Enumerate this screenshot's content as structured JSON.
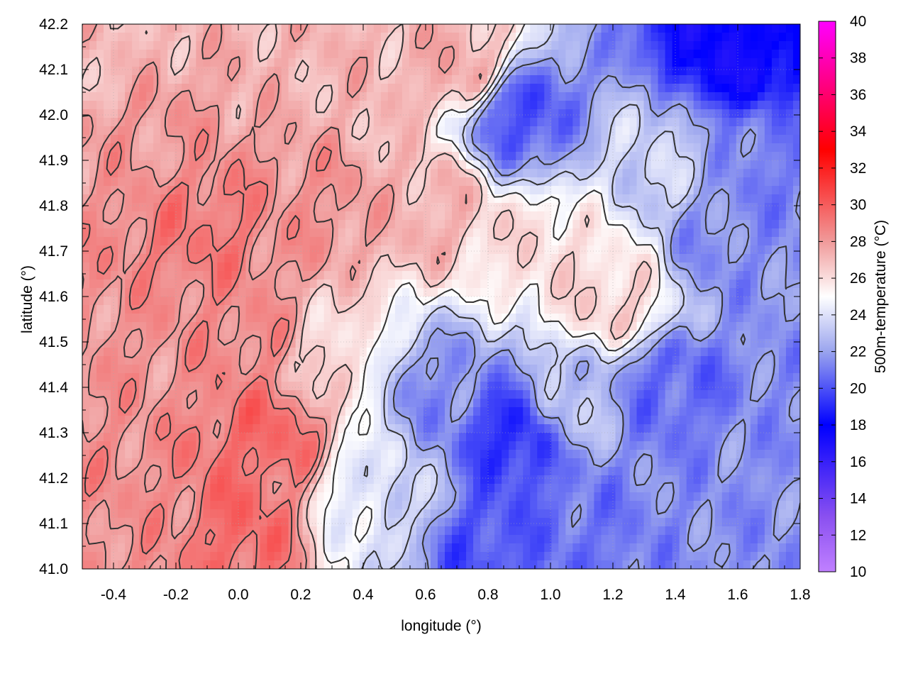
{
  "chart_data": {
    "type": "heatmap",
    "title": "",
    "xlabel": "longitude (°)",
    "ylabel": "latitude (°)",
    "colorbar_label": "500m-temperature (°C)",
    "xlim": [
      -0.5,
      1.8
    ],
    "ylim": [
      41.0,
      42.2
    ],
    "x_ticks": [
      -0.4,
      -0.2,
      0.0,
      0.2,
      0.4,
      0.6,
      0.8,
      1.0,
      1.2,
      1.4,
      1.6,
      1.8
    ],
    "x_tick_labels": [
      "-0.4",
      "-0.2",
      "0.0",
      "0.2",
      "0.4",
      "0.6",
      "0.8",
      "1.0",
      "1.2",
      "1.4",
      "1.6",
      "1.8"
    ],
    "y_ticks": [
      41.0,
      41.1,
      41.2,
      41.3,
      41.4,
      41.5,
      41.6,
      41.7,
      41.8,
      41.9,
      42.0,
      42.1,
      42.2
    ],
    "y_tick_labels": [
      "41.0",
      "41.1",
      "41.2",
      "41.3",
      "41.4",
      "41.5",
      "41.6",
      "41.7",
      "41.8",
      "41.9",
      "42.0",
      "42.1",
      "42.2"
    ],
    "colorbar_range": [
      10,
      40
    ],
    "colorbar_ticks": [
      10,
      12,
      14,
      16,
      18,
      20,
      22,
      24,
      26,
      28,
      30,
      32,
      34,
      36,
      38,
      40
    ],
    "colorbar_tick_labels": [
      "10",
      "12",
      "14",
      "16",
      "18",
      "20",
      "22",
      "24",
      "26",
      "28",
      "30",
      "32",
      "34",
      "36",
      "38",
      "40"
    ],
    "colormap_stops": [
      {
        "value": 10,
        "color": "#c080ff"
      },
      {
        "value": 13,
        "color": "#8a50f0"
      },
      {
        "value": 18,
        "color": "#0000ff"
      },
      {
        "value": 22,
        "color": "#9aa4ee"
      },
      {
        "value": 25,
        "color": "#ffffff"
      },
      {
        "value": 28,
        "color": "#f09a9a"
      },
      {
        "value": 33,
        "color": "#ff0000"
      },
      {
        "value": 40,
        "color": "#ff00ff"
      }
    ],
    "grid": true,
    "contour_color": "#333333",
    "field_anchors": [
      {
        "lon": -0.45,
        "lat": 42.15,
        "t": 27.0
      },
      {
        "lon": -0.3,
        "lat": 41.95,
        "t": 28.0
      },
      {
        "lon": -0.1,
        "lat": 41.75,
        "t": 29.0
      },
      {
        "lon": -0.3,
        "lat": 41.45,
        "t": 28.2
      },
      {
        "lon": 0.0,
        "lat": 41.5,
        "t": 28.5
      },
      {
        "lon": 0.1,
        "lat": 41.3,
        "t": 29.5
      },
      {
        "lon": 0.0,
        "lat": 41.1,
        "t": 29.5
      },
      {
        "lon": -0.3,
        "lat": 41.1,
        "t": 28.3
      },
      {
        "lon": 0.25,
        "lat": 41.8,
        "t": 28.2
      },
      {
        "lon": 0.3,
        "lat": 42.1,
        "t": 27.2
      },
      {
        "lon": 0.6,
        "lat": 41.8,
        "t": 27.3
      },
      {
        "lon": 0.7,
        "lat": 42.1,
        "t": 27.5
      },
      {
        "lon": 0.9,
        "lat": 42.0,
        "t": 20.0
      },
      {
        "lon": 1.0,
        "lat": 41.7,
        "t": 26.0
      },
      {
        "lon": 1.2,
        "lat": 41.6,
        "t": 26.3
      },
      {
        "lon": 1.3,
        "lat": 41.9,
        "t": 23.5
      },
      {
        "lon": 1.55,
        "lat": 41.7,
        "t": 21.5
      },
      {
        "lon": 1.6,
        "lat": 42.15,
        "t": 17.5
      },
      {
        "lon": 1.75,
        "lat": 41.9,
        "t": 21.0
      },
      {
        "lon": 1.4,
        "lat": 41.4,
        "t": 20.5
      },
      {
        "lon": 1.7,
        "lat": 41.3,
        "t": 21.5
      },
      {
        "lon": 1.5,
        "lat": 41.1,
        "t": 21.5
      },
      {
        "lon": 0.9,
        "lat": 41.3,
        "t": 19.0
      },
      {
        "lon": 0.8,
        "lat": 41.05,
        "t": 20.0
      },
      {
        "lon": 0.6,
        "lat": 41.4,
        "t": 21.5
      },
      {
        "lon": 0.45,
        "lat": 41.15,
        "t": 24.0
      },
      {
        "lon": 0.35,
        "lat": 41.45,
        "t": 26.0
      },
      {
        "lon": 1.05,
        "lat": 41.35,
        "t": 23.0
      },
      {
        "lon": 1.1,
        "lat": 41.05,
        "t": 20.8
      }
    ],
    "contour_levels": [
      22,
      23.5,
      25,
      26.5,
      28,
      29
    ]
  }
}
